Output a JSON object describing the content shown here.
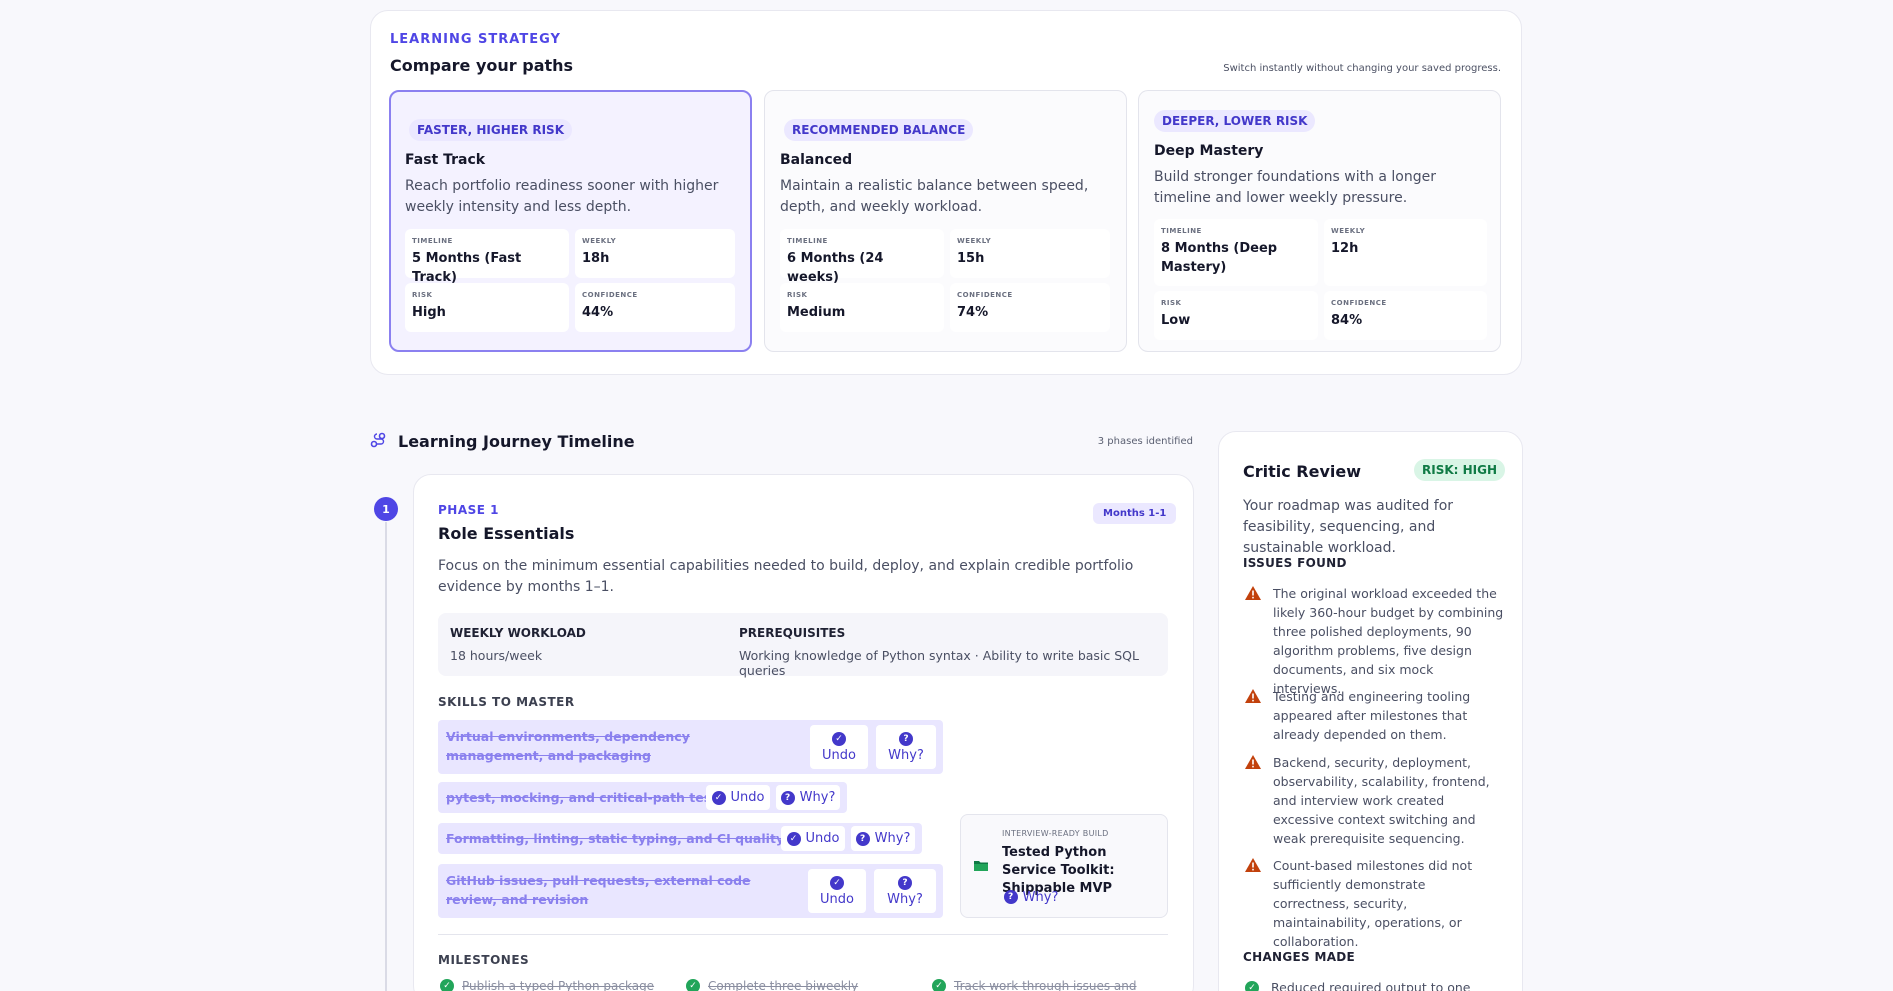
{
  "strategy": {
    "eyebrow": "LEARNING STRATEGY",
    "title": "Compare your paths",
    "note": "Switch instantly without changing your saved progress.",
    "paths": [
      {
        "chip": "FASTER, HIGHER RISK",
        "name": "Fast Track",
        "description": "Reach portfolio readiness sooner with higher weekly intensity and less depth.",
        "timeline_label": "TIMELINE",
        "timeline": "5 Months (Fast Track)",
        "weekly_label": "WEEKLY",
        "weekly": "18h",
        "risk_label": "RISK",
        "risk": "High",
        "confidence_label": "CONFIDENCE",
        "confidence": "44%",
        "selected": true
      },
      {
        "chip": "RECOMMENDED BALANCE",
        "name": "Balanced",
        "description": "Maintain a realistic balance between speed, depth, and weekly workload.",
        "timeline_label": "TIMELINE",
        "timeline": "6 Months (24 weeks)",
        "weekly_label": "WEEKLY",
        "weekly": "15h",
        "risk_label": "RISK",
        "risk": "Medium",
        "confidence_label": "CONFIDENCE",
        "confidence": "74%",
        "selected": false
      },
      {
        "chip": "DEEPER, LOWER RISK",
        "name": "Deep Mastery",
        "description": "Build stronger foundations with a longer timeline and lower weekly pressure.",
        "timeline_label": "TIMELINE",
        "timeline": "8 Months (Deep Mastery)",
        "weekly_label": "WEEKLY",
        "weekly": "12h",
        "risk_label": "RISK",
        "risk": "Low",
        "confidence_label": "CONFIDENCE",
        "confidence": "84%",
        "selected": false
      }
    ]
  },
  "timeline": {
    "title": "Learning Journey Timeline",
    "count": "3 phases identified",
    "phase": {
      "number": "1",
      "label": "PHASE 1",
      "title": "Role Essentials",
      "months": "Months 1-1",
      "description": "Focus on the minimum essential capabilities needed to build, deploy, and explain credible portfolio evidence by months 1–1.",
      "workload_label": "WEEKLY WORKLOAD",
      "workload": "18 hours/week",
      "prereq_label": "PREREQUISITES",
      "prereq": "Working knowledge of Python syntax · Ability to write basic SQL queries",
      "skills_label": "SKILLS TO MASTER",
      "undo_label": "Undo",
      "why_label": "Why?",
      "skills": [
        "Virtual environments, dependency management, and packaging",
        "pytest, mocking, and critical-path testing",
        "Formatting, linting, static typing, and CI quality gates",
        "GitHub issues, pull requests, external code review, and revision"
      ],
      "build": {
        "eyebrow": "INTERVIEW-READY BUILD",
        "title": "Tested Python Service Toolkit: Shippable MVP",
        "why": "Why?"
      },
      "milestones_label": "MILESTONES",
      "milestones": [
        "Publish a typed Python package",
        "Complete three biweekly",
        "Track work through issues and"
      ]
    }
  },
  "critic": {
    "title": "Critic Review",
    "risk": "RISK: HIGH",
    "description": "Your roadmap was audited for feasibility, sequencing, and sustainable workload.",
    "issues_label": "ISSUES FOUND",
    "issues": [
      "The original workload exceeded the likely 360-hour budget by combining three polished deployments, 90 algorithm problems, five design documents, and six mock interviews.",
      "Testing and engineering tooling appeared after milestones that already depended on them.",
      "Backend, security, deployment, observability, scalability, frontend, and interview work created excessive context switching and weak prerequisite sequencing.",
      "Count-based milestones did not sufficiently demonstrate correctness, security, maintainability, operations, or collaboration."
    ],
    "changes_label": "CHANGES MADE",
    "changes": [
      "Reduced required output to one"
    ]
  },
  "colors": {
    "accent": "#4f46e5",
    "accent_soft": "#ebe8ff",
    "risk_green": "#0f7a45",
    "warning": "#c2410c",
    "success": "#22a55a"
  }
}
